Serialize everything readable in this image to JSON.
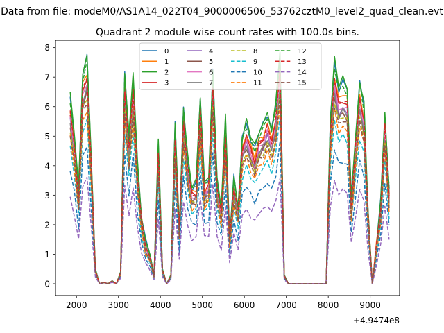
{
  "figure": {
    "suptitle": "Data from file: modeM0/AS1A14_022T04_9000006506_53762cztM0_level2_quad_clean.evt",
    "title": "Quadrant 2 module wise count rates with 100.0s bins.",
    "offset_label": "+4.9474e8"
  },
  "chart_data": {
    "type": "line",
    "title": "Quadrant 2 module wise count rates with 100.0s bins.",
    "xlabel": "",
    "ylabel": "",
    "x_offset": 494740000,
    "xlim": [
      1500,
      9700
    ],
    "ylim": [
      -0.4,
      8.25
    ],
    "xticks": [
      2000,
      3000,
      4000,
      5000,
      6000,
      7000,
      8000,
      9000
    ],
    "xtick_labels": [
      "2000",
      "3000",
      "4000",
      "5000",
      "6000",
      "7000",
      "8000",
      "9000"
    ],
    "yticks": [
      0,
      1,
      2,
      3,
      4,
      5,
      6,
      7,
      8
    ],
    "ytick_labels": [
      "0",
      "1",
      "2",
      "3",
      "4",
      "5",
      "6",
      "7",
      "8"
    ],
    "grid": false,
    "legend_position": "top-center",
    "legend_columns": 4,
    "x": [
      1850,
      1950,
      2050,
      2150,
      2250,
      2350,
      2450,
      2550,
      2650,
      2750,
      2850,
      2950,
      3050,
      3150,
      3250,
      3350,
      3450,
      3550,
      3650,
      3750,
      3850,
      3950,
      4050,
      4150,
      4250,
      4350,
      4450,
      4550,
      4650,
      4750,
      4850,
      4950,
      5050,
      5150,
      5250,
      5350,
      5450,
      5550,
      5650,
      5750,
      5850,
      5950,
      6050,
      6150,
      6250,
      6350,
      6450,
      6550,
      6650,
      6750,
      6850,
      6950,
      7050,
      7150,
      7250,
      7350,
      7450,
      7550,
      7650,
      7750,
      7850,
      7950,
      8050,
      8150,
      8250,
      8350,
      8450,
      8550,
      8650,
      8750,
      8850,
      8950,
      9050,
      9150,
      9250,
      9350,
      9450
    ],
    "base_profile": [
      6.4,
      5.1,
      3.2,
      7.2,
      7.7,
      4.4,
      0.5,
      0.0,
      0.05,
      0.0,
      0.1,
      0.0,
      0.4,
      7.2,
      5.0,
      7.2,
      4.1,
      2.3,
      1.4,
      1.0,
      0.3,
      4.8,
      0.5,
      0.0,
      0.3,
      5.4,
      1.9,
      6.0,
      4.3,
      3.3,
      3.4,
      6.4,
      3.4,
      3.6,
      7.3,
      3.5,
      2.6,
      5.6,
      1.6,
      3.6,
      2.6,
      5.0,
      5.5,
      5.0,
      4.6,
      5.2,
      5.4,
      5.8,
      5.3,
      6.1,
      7.9,
      0.3,
      0.0,
      0.0,
      0.0,
      0.0,
      0.0,
      0.0,
      0.0,
      0.0,
      0.0,
      0.0,
      5.6,
      7.6,
      6.7,
      6.9,
      6.7,
      2.9,
      5.0,
      6.9,
      6.1,
      2.5,
      0.0,
      1.4,
      2.8,
      5.8,
      3.2
    ],
    "series": [
      {
        "name": "0",
        "color": "#1f77b4",
        "dash": "solid",
        "scale": 0.99
      },
      {
        "name": "1",
        "color": "#ff7f0e",
        "dash": "solid",
        "scale": 0.93
      },
      {
        "name": "2",
        "color": "#2ca02c",
        "dash": "solid",
        "scale": 1.0
      },
      {
        "name": "3",
        "color": "#d62728",
        "dash": "solid",
        "scale": 0.9
      },
      {
        "name": "4",
        "color": "#9467bd",
        "dash": "solid",
        "scale": 0.86
      },
      {
        "name": "5",
        "color": "#8c564b",
        "dash": "solid",
        "scale": 0.84
      },
      {
        "name": "6",
        "color": "#e377c2",
        "dash": "solid",
        "scale": 0.88
      },
      {
        "name": "7",
        "color": "#7f7f7f",
        "dash": "solid",
        "scale": 0.85
      },
      {
        "name": "8",
        "color": "#bcbd22",
        "dash": "dashed",
        "scale": 0.82
      },
      {
        "name": "9",
        "color": "#17becf",
        "dash": "dashed",
        "scale": 0.72
      },
      {
        "name": "10",
        "color": "#1f77b4",
        "dash": "dashed",
        "scale": 0.6
      },
      {
        "name": "11",
        "color": "#ff7f0e",
        "dash": "dashed",
        "scale": 0.77
      },
      {
        "name": "12",
        "color": "#2ca02c",
        "dash": "dashed",
        "scale": 0.97
      },
      {
        "name": "13",
        "color": "#d62728",
        "dash": "dashed",
        "scale": 0.91
      },
      {
        "name": "14",
        "color": "#9467bd",
        "dash": "dashed",
        "scale": 0.46
      },
      {
        "name": "15",
        "color": "#8c564b",
        "dash": "dashed",
        "scale": 0.8
      }
    ]
  }
}
